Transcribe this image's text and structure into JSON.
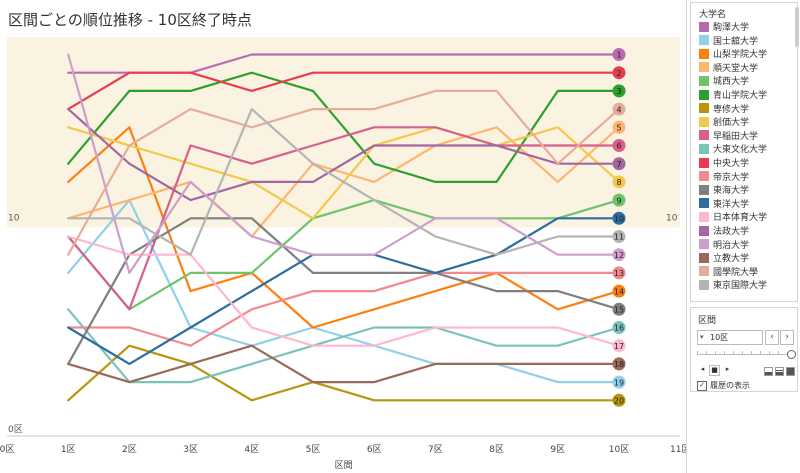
{
  "title": "区間ごとの順位推移 - 10区終了時点",
  "chart_data": {
    "type": "line",
    "x": [
      "0区",
      "1区",
      "2区",
      "3区",
      "4区",
      "5区",
      "6区",
      "7区",
      "8区",
      "9区",
      "10区",
      "11区"
    ],
    "xlabel": "区間",
    "y_inverted": true,
    "y_ref_labels": [
      "10",
      "0区"
    ],
    "seed_band_ranks": [
      1,
      10
    ],
    "end_rank_labels": [
      "1",
      "2",
      "3",
      "4",
      "5",
      "6",
      "7",
      "8",
      "9",
      "10",
      "11",
      "12",
      "13",
      "14",
      "15",
      "16",
      "17",
      "18",
      "19",
      "20"
    ],
    "series": [
      {
        "name": "駒澤大学",
        "color": "#b76bb1",
        "values": [
          null,
          2,
          2,
          2,
          1,
          1,
          1,
          1,
          1,
          1,
          1,
          null
        ]
      },
      {
        "name": "国士舘大学",
        "color": "#8fd1e8",
        "values": [
          null,
          13,
          9,
          16,
          17,
          16,
          17,
          18,
          18,
          19,
          19,
          null
        ]
      },
      {
        "name": "山梨学院大学",
        "color": "#ff7f0e",
        "values": [
          null,
          8,
          5,
          14,
          13,
          16,
          15,
          14,
          13,
          15,
          14,
          null
        ]
      },
      {
        "name": "順天堂大学",
        "color": "#ffb570",
        "values": [
          null,
          10,
          9,
          8,
          11,
          7,
          8,
          6,
          5,
          8,
          5,
          null
        ]
      },
      {
        "name": "城西大学",
        "color": "#6dc469",
        "values": [
          null,
          11,
          15,
          13,
          13,
          10,
          9,
          10,
          10,
          10,
          9,
          null
        ]
      },
      {
        "name": "青山学院大学",
        "color": "#2ca02c",
        "values": [
          null,
          7,
          3,
          3,
          2,
          3,
          7,
          8,
          8,
          3,
          3,
          null
        ]
      },
      {
        "name": "専修大学",
        "color": "#b8960c",
        "values": [
          null,
          20,
          17,
          18,
          20,
          19,
          20,
          20,
          20,
          20,
          20,
          null
        ]
      },
      {
        "name": "創価大学",
        "color": "#f2c94c",
        "values": [
          null,
          5,
          6,
          7,
          8,
          10,
          6,
          5,
          6,
          5,
          8,
          null
        ]
      },
      {
        "name": "早稲田大学",
        "color": "#d6608a",
        "values": [
          null,
          11,
          15,
          6,
          7,
          6,
          5,
          5,
          6,
          6,
          6,
          null
        ]
      },
      {
        "name": "大東文化大学",
        "color": "#79c3bb",
        "values": [
          null,
          15,
          19,
          19,
          18,
          17,
          16,
          16,
          17,
          17,
          16,
          null
        ]
      },
      {
        "name": "中央大学",
        "color": "#e83d4f",
        "values": [
          null,
          4,
          2,
          2,
          3,
          2,
          2,
          2,
          2,
          2,
          2,
          null
        ]
      },
      {
        "name": "帝京大学",
        "color": "#f3888f",
        "values": [
          null,
          16,
          16,
          17,
          15,
          14,
          14,
          13,
          13,
          13,
          13,
          null
        ]
      },
      {
        "name": "東海大学",
        "color": "#7f7f7f",
        "values": [
          null,
          18,
          12,
          10,
          10,
          13,
          13,
          13,
          14,
          14,
          15,
          null
        ]
      },
      {
        "name": "東洋大学",
        "color": "#2f6d9e",
        "values": [
          null,
          16,
          18,
          16,
          14,
          12,
          12,
          13,
          12,
          10,
          10,
          null
        ]
      },
      {
        "name": "日本体育大学",
        "color": "#ffb6cf",
        "values": [
          null,
          11,
          12,
          12,
          16,
          17,
          17,
          16,
          16,
          16,
          17,
          null
        ]
      },
      {
        "name": "法政大学",
        "color": "#a366a1",
        "values": [
          null,
          4,
          7,
          9,
          8,
          8,
          6,
          6,
          6,
          7,
          7,
          null
        ]
      },
      {
        "name": "明治大学",
        "color": "#cf9ecb",
        "values": [
          null,
          1,
          13,
          8,
          11,
          12,
          12,
          10,
          10,
          12,
          12,
          null
        ]
      },
      {
        "name": "立教大学",
        "color": "#9a6a57",
        "values": [
          null,
          18,
          19,
          18,
          17,
          19,
          19,
          18,
          18,
          18,
          18,
          null
        ]
      },
      {
        "name": "國學院大學",
        "color": "#e6ac9a",
        "values": [
          null,
          12,
          6,
          4,
          5,
          4,
          4,
          3,
          3,
          7,
          4,
          null
        ]
      },
      {
        "name": "東京国際大学",
        "color": "#b4b4b4",
        "values": [
          null,
          10,
          10,
          12,
          4,
          7,
          9,
          11,
          12,
          11,
          11,
          null
        ]
      }
    ]
  },
  "legend": {
    "title": "大学名"
  },
  "filter": {
    "title": "区間",
    "value": "10区",
    "caret": "▾",
    "prev_glyph": "‹",
    "next_glyph": "›",
    "back_glyph": "◂",
    "stop_glyph": "■",
    "play_glyph": "▸",
    "history_label": "履歴の表示",
    "history_check": "✓"
  }
}
